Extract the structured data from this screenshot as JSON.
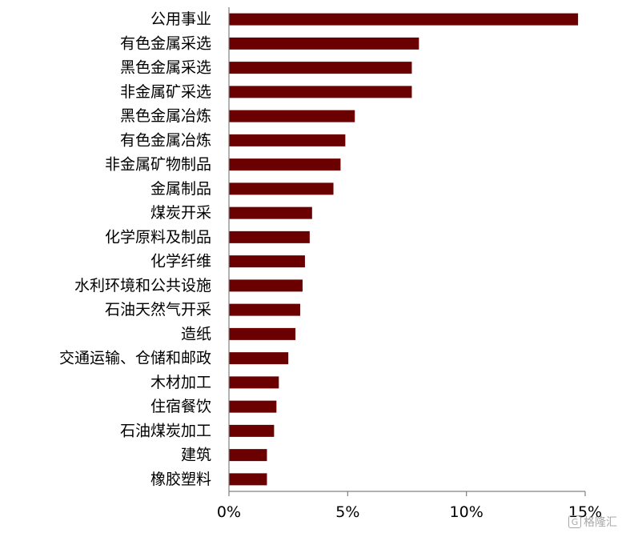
{
  "chart_data": {
    "type": "bar",
    "orientation": "horizontal",
    "categories": [
      "公用事业",
      "有色金属采选",
      "黑色金属采选",
      "非金属矿采选",
      "黑色金属冶炼",
      "有色金属冶炼",
      "非金属矿物制品",
      "金属制品",
      "煤炭开采",
      "化学原料及制品",
      "化学纤维",
      "水利环境和公共设施",
      "石油天然气开采",
      "造纸",
      "交通运输、仓储和邮政",
      "木材加工",
      "住宿餐饮",
      "石油煤炭加工",
      "建筑",
      "橡胶塑料"
    ],
    "values": [
      14.7,
      8.0,
      7.7,
      7.7,
      5.3,
      4.9,
      4.7,
      4.4,
      3.5,
      3.4,
      3.2,
      3.1,
      3.0,
      2.8,
      2.5,
      2.1,
      2.0,
      1.9,
      1.6,
      1.6
    ],
    "xlim": [
      0,
      15
    ],
    "xticks": [
      0,
      5,
      10,
      15
    ],
    "xtick_labels": [
      "0%",
      "5%",
      "10%",
      "15%"
    ],
    "bar_color": "#6b0000",
    "grid": false,
    "title": "",
    "xlabel": "",
    "ylabel": ""
  },
  "watermark": {
    "logo_glyph": "G",
    "text": "格隆汇"
  }
}
